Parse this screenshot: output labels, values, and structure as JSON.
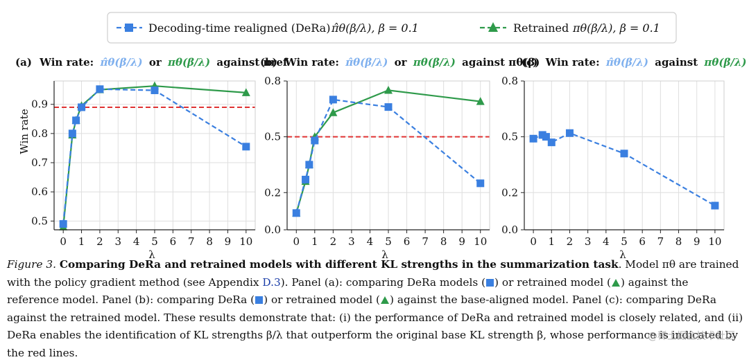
{
  "colors": {
    "dera": "#3a7fe0",
    "retrained": "#2e9a4a",
    "reference": "#e03232"
  },
  "legend": {
    "dera_label": "Decoding-time realigned (DeRa)",
    "dera_math": "π̂θ(β/λ),  β = 0.1",
    "retrained_label": "Retrained",
    "retrained_math": "πθ(β/λ),  β = 0.1"
  },
  "chart_data": [
    {
      "type": "line",
      "panel": "(a)",
      "title": {
        "label": "(a)",
        "prefix": "Win rate:",
        "dera": "π̂θ(β/λ)",
        "mid": "or",
        "retrained": "πθ(β/λ)",
        "suffix": "against πref"
      },
      "xlabel": "λ",
      "ylabel": "Win rate",
      "xlim": [
        -0.5,
        10.5
      ],
      "ylim": [
        0.47,
        0.98
      ],
      "xticks": [
        0,
        1,
        2,
        3,
        4,
        5,
        6,
        7,
        8,
        9,
        10
      ],
      "yticks": [
        0.5,
        0.6,
        0.7,
        0.8,
        0.9
      ],
      "reference_line": 0.89,
      "series": [
        {
          "name": "DeRa",
          "x": [
            0,
            0.5,
            0.7,
            1,
            2,
            5,
            10
          ],
          "values": [
            0.49,
            0.8,
            0.845,
            0.89,
            0.952,
            0.948,
            0.755
          ]
        },
        {
          "name": "Retrained",
          "x": [
            0,
            0.5,
            0.7,
            1,
            2,
            5,
            10
          ],
          "values": [
            0.48,
            0.795,
            0.845,
            0.895,
            0.95,
            0.963,
            0.94
          ]
        }
      ]
    },
    {
      "type": "line",
      "panel": "(b)",
      "title": {
        "label": "(b)",
        "prefix": "Win rate:",
        "dera": "π̂θ(β/λ)",
        "mid": "or",
        "retrained": "πθ(β/λ)",
        "suffix": "against πθ(β)"
      },
      "xlabel": "λ",
      "ylabel": "",
      "xlim": [
        -0.5,
        10.5
      ],
      "ylim": [
        0,
        0.8
      ],
      "xticks": [
        0,
        1,
        2,
        3,
        4,
        5,
        6,
        7,
        8,
        9,
        10
      ],
      "yticks": [
        0.0,
        0.2,
        0.5,
        0.8
      ],
      "reference_line": 0.5,
      "series": [
        {
          "name": "DeRa",
          "x": [
            0,
            0.5,
            0.7,
            1,
            2,
            5,
            10
          ],
          "values": [
            0.09,
            0.27,
            0.35,
            0.48,
            0.7,
            0.66,
            0.25
          ]
        },
        {
          "name": "Retrained",
          "x": [
            0,
            0.5,
            0.7,
            1,
            2,
            5,
            10
          ],
          "values": [
            0.09,
            0.26,
            0.35,
            0.5,
            0.63,
            0.75,
            0.69
          ]
        }
      ]
    },
    {
      "type": "line",
      "panel": "(c)",
      "title": {
        "label": "(c)",
        "prefix": "Win rate:",
        "dera": "π̂θ(β/λ)",
        "mid": "against",
        "retrained": "πθ(β/λ)",
        "suffix": ""
      },
      "xlabel": "λ",
      "ylabel": "",
      "xlim": [
        -0.5,
        10.5
      ],
      "ylim": [
        0,
        0.8
      ],
      "xticks": [
        0,
        1,
        2,
        3,
        4,
        5,
        6,
        7,
        8,
        9,
        10
      ],
      "yticks": [
        0.0,
        0.2,
        0.5,
        0.8
      ],
      "reference_line": null,
      "series": [
        {
          "name": "DeRa",
          "x": [
            0,
            0.5,
            0.7,
            1,
            2,
            5,
            10
          ],
          "values": [
            0.49,
            0.51,
            0.5,
            0.47,
            0.52,
            0.41,
            0.13
          ]
        }
      ]
    }
  ],
  "caption": {
    "figure_label": "Figure 3.",
    "bold_title": "Comparing DeRa and retrained models with different KL strengths in the summarization task",
    "p1": ". Model πθ are trained with the policy gradient method (see Appendix ",
    "appendix_ref": "D.3",
    "p2": "). Panel (a): comparing DeRa models (",
    "p3": ") or retrained model (",
    "p4": ") against the reference model. Panel (b): comparing DeRa (",
    "p5": ") or retrained model (",
    "p6": ") against the base-aligned model. Panel (c): comparing DeRa against the retrained model. These results demonstrate that: (i) the performance of DeRa and retrained model is closely related, and (ii) DeRa enables the identification of KL strengths β/λ that outperform the original base KL strength β, whose performance is indicated by the red lines."
  },
  "watermark": "@稀土掘金技术社区"
}
